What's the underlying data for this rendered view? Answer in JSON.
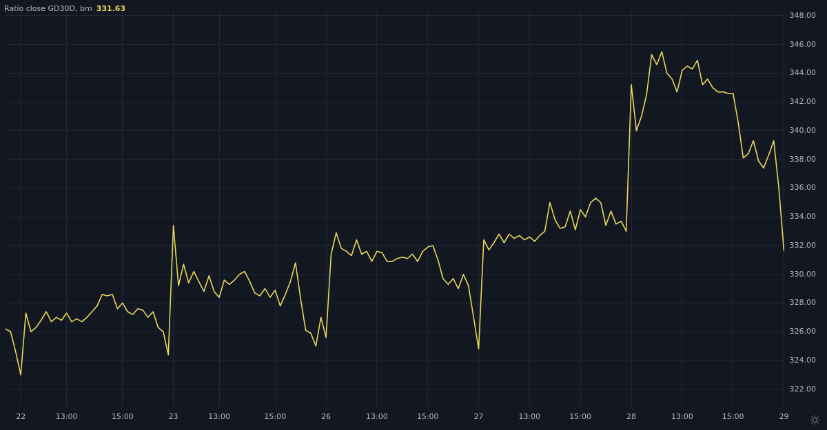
{
  "chart_data": {
    "type": "line",
    "title": "Ratio close GD30D, bm",
    "annotations": [
      "331.63"
    ],
    "categories": [
      null,
      null,
      null,
      "22",
      null,
      null,
      null,
      null,
      null,
      null,
      null,
      null,
      "13:00",
      null,
      null,
      null,
      null,
      null,
      null,
      null,
      null,
      null,
      null,
      "15:00",
      null,
      null,
      null,
      null,
      null,
      null,
      null,
      null,
      null,
      "23",
      null,
      null,
      null,
      null,
      null,
      null,
      null,
      null,
      "13:00",
      null,
      null,
      null,
      null,
      null,
      null,
      null,
      null,
      null,
      null,
      "15:00",
      null,
      null,
      null,
      null,
      null,
      null,
      null,
      null,
      null,
      "26",
      null,
      null,
      null,
      null,
      null,
      null,
      null,
      null,
      null,
      "13:00",
      null,
      null,
      null,
      null,
      null,
      null,
      null,
      null,
      null,
      "15:00",
      null,
      null,
      null,
      null,
      null,
      null,
      null,
      null,
      null,
      "27",
      null,
      null,
      null,
      null,
      null,
      null,
      null,
      null,
      null,
      "13:00",
      null,
      null,
      null,
      null,
      null,
      null,
      null,
      null,
      null,
      "15:00",
      null,
      null,
      null,
      null,
      null,
      null,
      null,
      null,
      null,
      "28",
      null,
      null,
      null,
      null,
      null,
      null,
      null,
      null,
      null,
      "13:00",
      null,
      null,
      null,
      null,
      null,
      null,
      null,
      null,
      null,
      "15:00",
      null,
      null,
      null,
      null,
      null,
      null,
      null,
      null,
      null,
      "29"
    ],
    "series": [
      {
        "color": "#e8d75a",
        "values": [
          326.2,
          326.0,
          324.6,
          323.0,
          327.3,
          326.0,
          326.3,
          326.8,
          327.4,
          326.7,
          327.0,
          326.8,
          327.3,
          326.7,
          326.9,
          326.7,
          327.0,
          327.4,
          327.8,
          328.6,
          328.5,
          328.6,
          327.6,
          328.0,
          327.4,
          327.2,
          327.6,
          327.5,
          327.0,
          327.4,
          326.3,
          326.0,
          324.4,
          333.4,
          329.2,
          330.7,
          329.4,
          330.2,
          329.5,
          328.8,
          329.9,
          328.8,
          328.4,
          329.6,
          329.3,
          329.6,
          330.0,
          330.2,
          329.5,
          328.7,
          328.5,
          329.0,
          328.4,
          328.9,
          327.8,
          328.6,
          329.5,
          330.8,
          328.3,
          326.1,
          325.9,
          325.0,
          327.0,
          325.6,
          331.4,
          332.9,
          331.8,
          331.6,
          331.3,
          332.4,
          331.4,
          331.6,
          330.9,
          331.6,
          331.5,
          330.9,
          330.9,
          331.1,
          331.2,
          331.1,
          331.4,
          330.9,
          331.6,
          331.9,
          332.0,
          331.0,
          329.7,
          329.3,
          329.7,
          329.0,
          330.0,
          329.2,
          327.0,
          324.8,
          332.4,
          331.7,
          332.2,
          332.8,
          332.2,
          332.8,
          332.5,
          332.7,
          332.4,
          332.6,
          332.3,
          332.7,
          333.0,
          335.0,
          333.8,
          333.2,
          333.3,
          334.4,
          333.1,
          334.5,
          334.0,
          335.0,
          335.3,
          335.0,
          333.4,
          334.4,
          333.5,
          333.7,
          333.0,
          343.2,
          340.0,
          341.0,
          342.5,
          345.3,
          344.6,
          345.5,
          344.0,
          343.6,
          342.7,
          344.2,
          344.5,
          344.3,
          344.9,
          343.2,
          343.6,
          343.0,
          342.7,
          342.7,
          342.6,
          342.6,
          340.6,
          338.1,
          338.4,
          339.3,
          337.9,
          337.4,
          338.3,
          339.3,
          336.0,
          331.63
        ]
      }
    ],
    "ylim": [
      320.75,
      348.4
    ],
    "yticks": [
      {
        "value": 322,
        "label": "322.00"
      },
      {
        "value": 324,
        "label": "324.00"
      },
      {
        "value": 326,
        "label": "326.00"
      },
      {
        "value": 328,
        "label": "328.00"
      },
      {
        "value": 330,
        "label": "330.00"
      },
      {
        "value": 332,
        "label": "332.00"
      },
      {
        "value": 334,
        "label": "334.00"
      },
      {
        "value": 336,
        "label": "336.00"
      },
      {
        "value": 338,
        "label": "338.00"
      },
      {
        "value": 340,
        "label": "340.00"
      },
      {
        "value": 342,
        "label": "342.00"
      },
      {
        "value": 344,
        "label": "344.00"
      },
      {
        "value": 346,
        "label": "346.00"
      },
      {
        "value": 348,
        "label": "348.00"
      }
    ],
    "grid": true,
    "legend": false,
    "marker": "none",
    "line_style": "solid"
  }
}
